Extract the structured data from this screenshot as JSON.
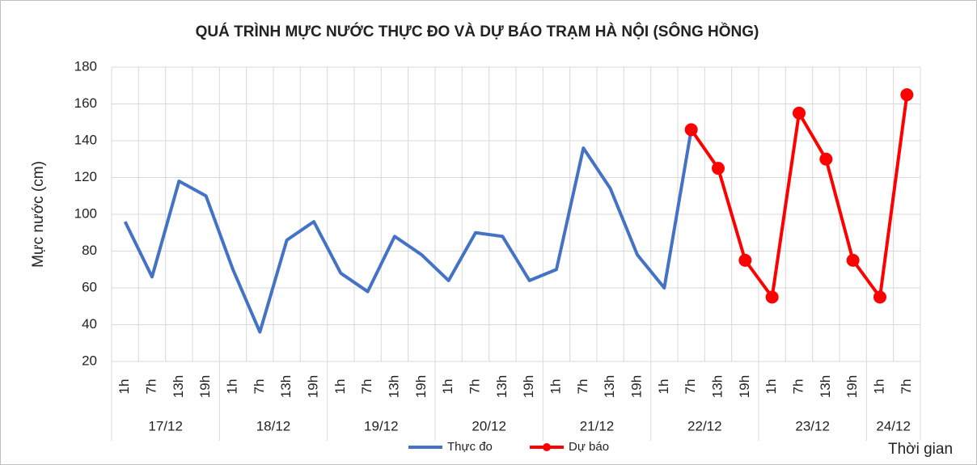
{
  "chart_data": {
    "type": "line",
    "title": "QUÁ TRÌNH MỰC NƯỚC THỰC ĐO VÀ DỰ BÁO TRẠM HÀ NỘI (SÔNG HỒNG)",
    "y_label": "Mực nước (cm)",
    "x_label": "Thời gian",
    "groups": [
      {
        "label": "17/12",
        "categories": [
          "1h",
          "7h",
          "13h",
          "19h"
        ]
      },
      {
        "label": "18/12",
        "categories": [
          "1h",
          "7h",
          "13h",
          "19h"
        ]
      },
      {
        "label": "19/12",
        "categories": [
          "1h",
          "7h",
          "13h",
          "19h"
        ]
      },
      {
        "label": "20/12",
        "categories": [
          "1h",
          "7h",
          "13h",
          "19h"
        ]
      },
      {
        "label": "21/12",
        "categories": [
          "1h",
          "7h",
          "13h",
          "19h"
        ]
      },
      {
        "label": "22/12",
        "categories": [
          "1h",
          "7h",
          "13h",
          "19h"
        ]
      },
      {
        "label": "23/12",
        "categories": [
          "1h",
          "7h",
          "13h",
          "19h"
        ]
      },
      {
        "label": "24/12",
        "categories": [
          "1h",
          "7h"
        ]
      }
    ],
    "series": [
      {
        "name": "Thực đo",
        "color": "#4472c4",
        "markers": false,
        "values": [
          96,
          66,
          118,
          110,
          70,
          36,
          86,
          96,
          68,
          58,
          88,
          78,
          64,
          90,
          88,
          64,
          70,
          136,
          114,
          78,
          60,
          146,
          null,
          null,
          null,
          null,
          null,
          null,
          null,
          null
        ]
      },
      {
        "name": "Dự báo",
        "color": "#ff0000",
        "markers": true,
        "values": [
          null,
          null,
          null,
          null,
          null,
          null,
          null,
          null,
          null,
          null,
          null,
          null,
          null,
          null,
          null,
          null,
          null,
          null,
          null,
          null,
          null,
          146,
          125,
          75,
          55,
          155,
          130,
          75,
          55,
          165
        ]
      }
    ],
    "ylim": [
      20,
      180
    ],
    "yticks": [
      20,
      40,
      60,
      80,
      100,
      120,
      140,
      160,
      180
    ],
    "grid": true,
    "legend": "bottom"
  }
}
